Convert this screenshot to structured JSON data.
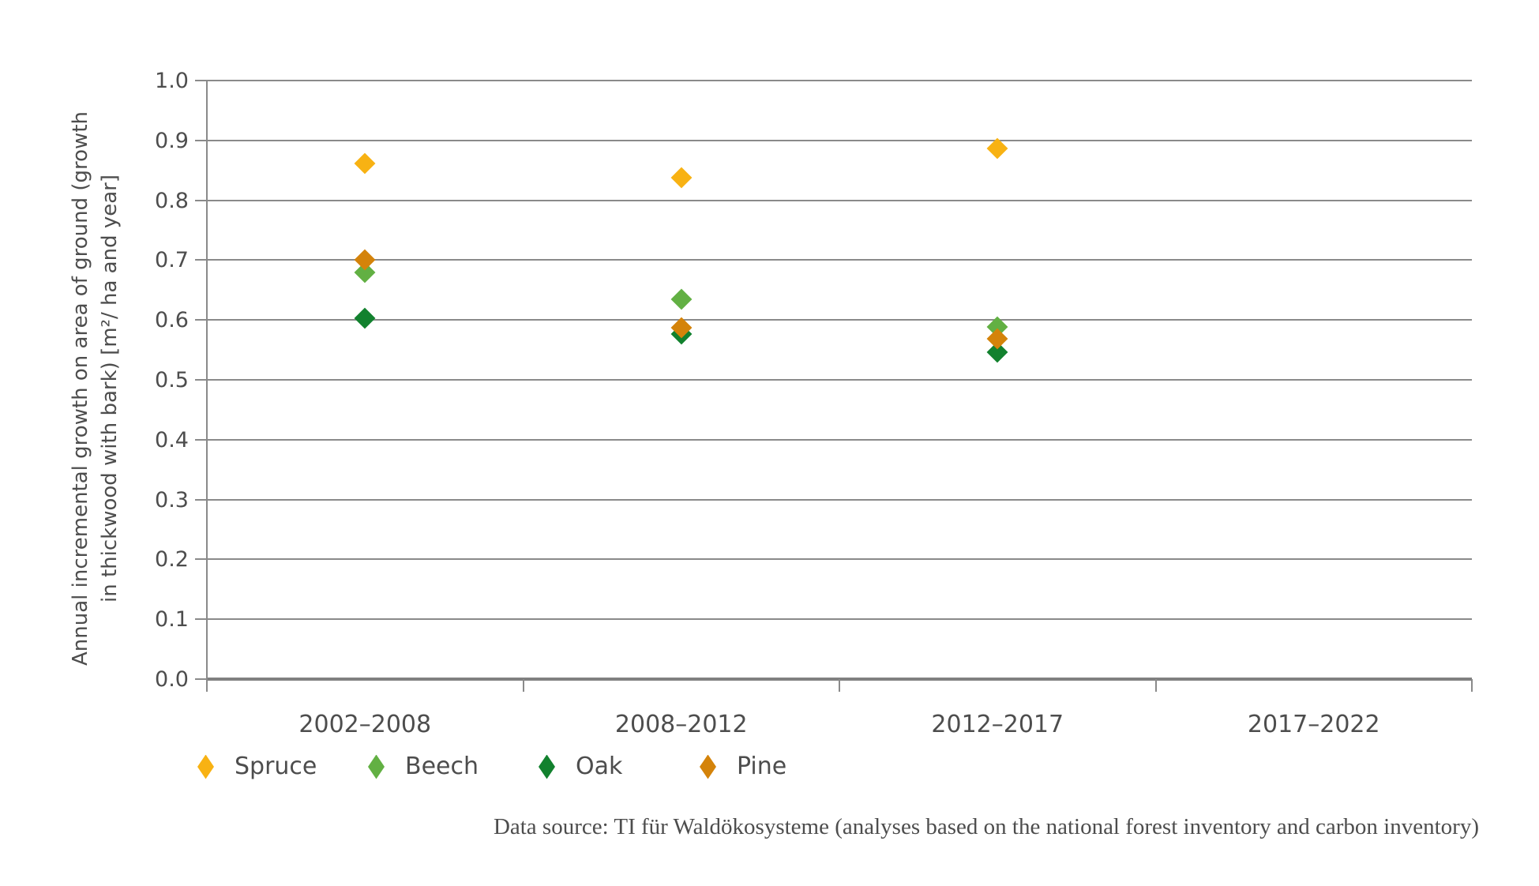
{
  "chart_data": {
    "type": "scatter",
    "marker": "diamond",
    "categories": [
      "2002–2008",
      "2008–2012",
      "2012–2017",
      "2017–2022"
    ],
    "series": [
      {
        "name": "Spruce",
        "color": "#F8B213",
        "values": [
          0.862,
          0.838,
          0.887,
          null
        ]
      },
      {
        "name": "Beech",
        "color": "#62B043",
        "values": [
          0.679,
          0.635,
          0.589,
          null
        ]
      },
      {
        "name": "Oak",
        "color": "#12812E",
        "values": [
          0.603,
          0.576,
          0.546,
          null
        ]
      },
      {
        "name": "Pine",
        "color": "#D4830A",
        "values": [
          0.701,
          0.587,
          0.569,
          null
        ]
      }
    ],
    "ylabel_line1": "Annual incremental growth on area of ground (growth",
    "ylabel_line2": "in thickwood with bark) [m²/ ha and year]",
    "ylim": [
      0.0,
      1.0
    ],
    "ytick_step": 0.1,
    "ytick_labels": [
      "0.0",
      "0.1",
      "0.2",
      "0.3",
      "0.4",
      "0.5",
      "0.6",
      "0.7",
      "0.8",
      "0.9",
      "1.0"
    ],
    "grid": "horizontal",
    "legend_position": "bottom",
    "gridline_color": "#8a8a8a",
    "axis_color": "#808080",
    "text_color": "#4d4d4d"
  },
  "source_note": "Data source: TI für Waldökosysteme (analyses based on the national forest inventory and carbon inventory)"
}
